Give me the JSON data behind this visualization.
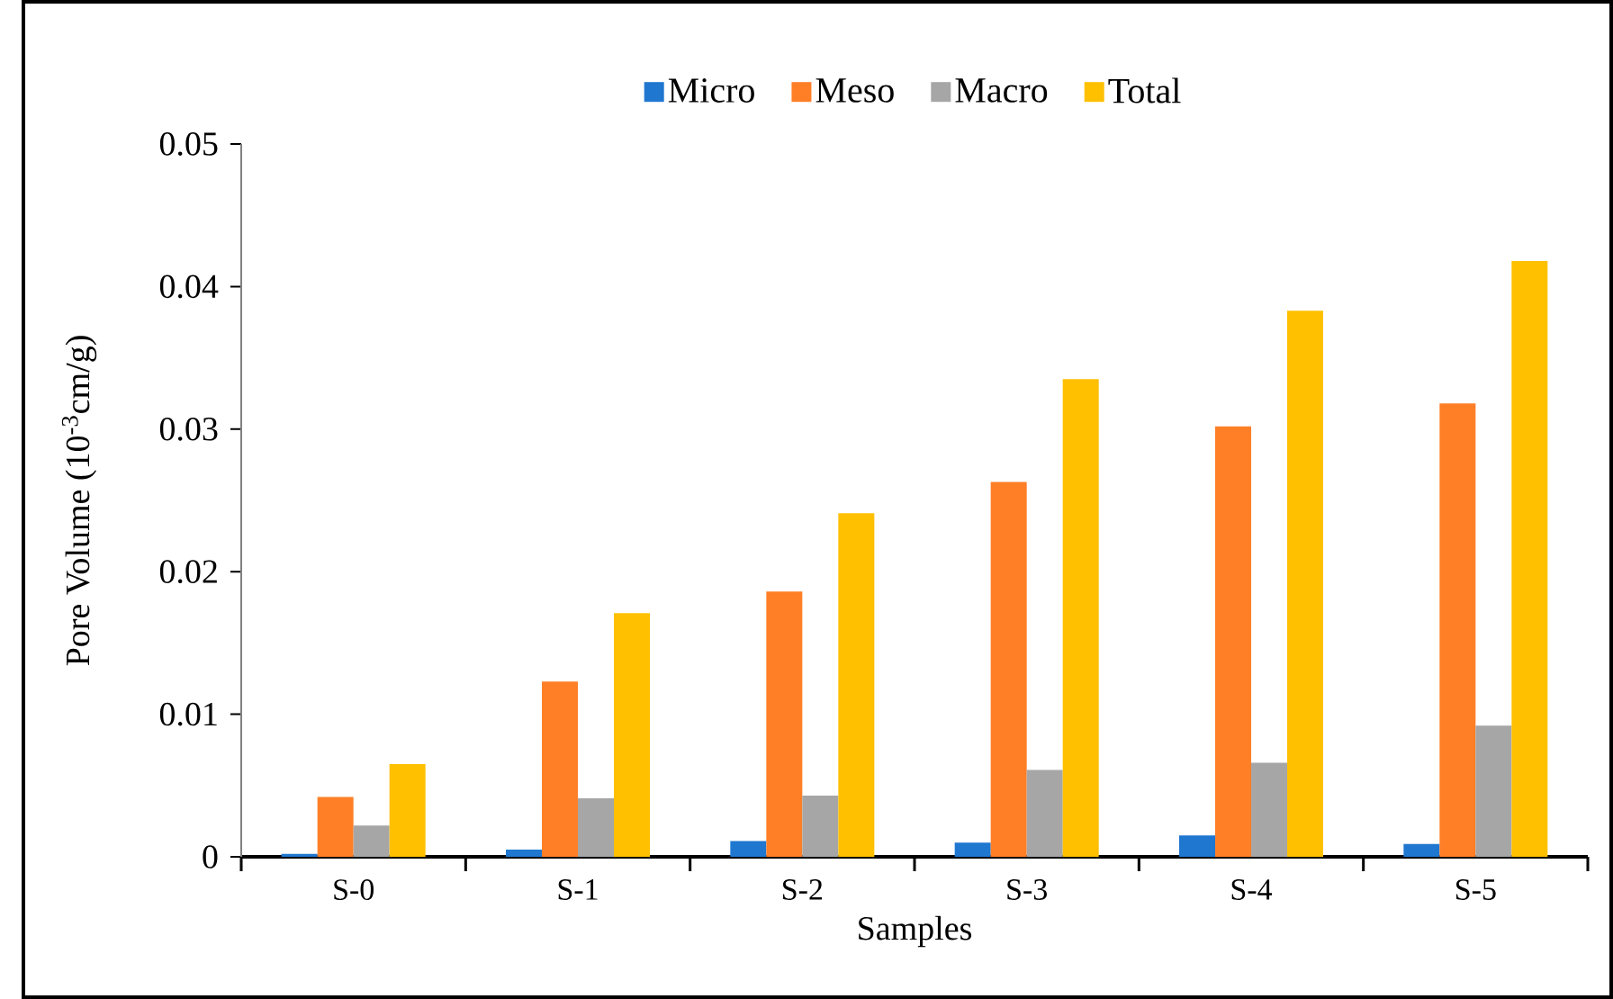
{
  "chart_data": {
    "type": "bar",
    "xlabel": "Samples",
    "ylabel": "Pore Volume (10$^{-3}$cm/g)",
    "categories": [
      "S-0",
      "S-1",
      "S-2",
      "S-3",
      "S-4",
      "S-5"
    ],
    "series": [
      {
        "name": "Micro",
        "color": "#1f77d0",
        "values": [
          0.0002,
          0.0005,
          0.0011,
          0.001,
          0.0015,
          0.0009
        ]
      },
      {
        "name": "Meso",
        "color": "#ff7f27",
        "values": [
          0.0042,
          0.0123,
          0.0186,
          0.0263,
          0.0302,
          0.0318
        ]
      },
      {
        "name": "Macro",
        "color": "#a6a6a6",
        "values": [
          0.0022,
          0.0041,
          0.0043,
          0.0061,
          0.0066,
          0.0092
        ]
      },
      {
        "name": "Total",
        "color": "#ffc000",
        "values": [
          0.0065,
          0.0171,
          0.0241,
          0.0335,
          0.0383,
          0.0418
        ]
      }
    ],
    "ylim": [
      0,
      0.05
    ],
    "yticks": [
      0,
      0.01,
      0.02,
      0.03,
      0.04,
      0.05
    ],
    "legend": "top",
    "grid": false
  }
}
